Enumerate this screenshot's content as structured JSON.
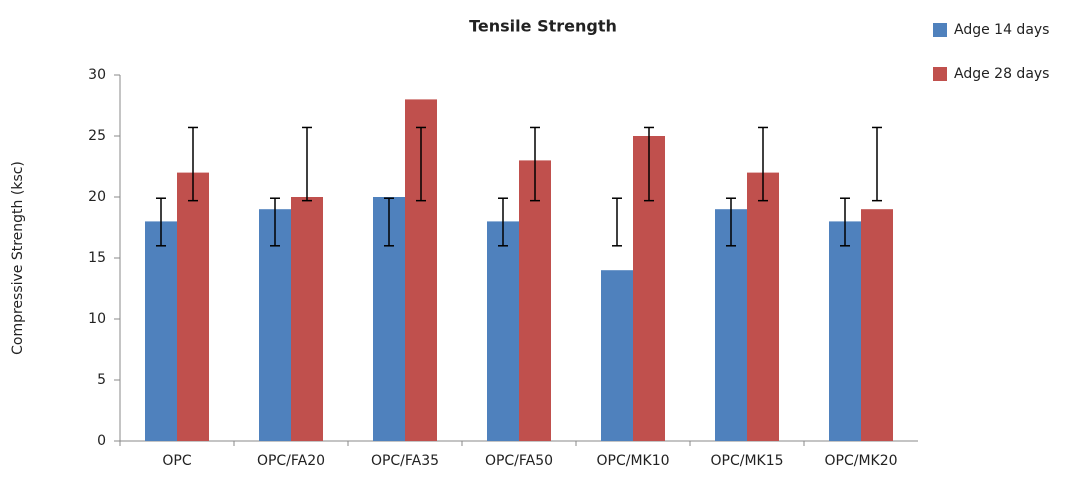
{
  "chart_data": {
    "type": "bar",
    "title": "Tensile Strength",
    "y_label": "Compressive Strength (ksc)",
    "categories": [
      "OPC",
      "OPC/FA20",
      "OPC/FA35",
      "OPC/FA50",
      "OPC/MK10",
      "OPC/MK15",
      "OPC/MK20"
    ],
    "series": [
      {
        "name": "Adge 14 days",
        "color": "#4f81bd",
        "values": [
          18,
          19,
          20,
          18,
          14,
          19,
          18
        ],
        "error_low": [
          16,
          16,
          16,
          16,
          16,
          16,
          16
        ],
        "error_high": [
          19.9,
          19.9,
          19.9,
          19.9,
          19.9,
          19.9,
          19.9
        ]
      },
      {
        "name": "Adge 28 days",
        "color": "#c0504d",
        "values": [
          22,
          20,
          28,
          23,
          25,
          22,
          19
        ],
        "error_low": [
          19.7,
          19.7,
          19.7,
          19.7,
          19.7,
          19.7,
          19.7
        ],
        "error_high": [
          25.7,
          25.7,
          25.7,
          25.7,
          25.7,
          25.7,
          25.7
        ]
      }
    ],
    "ylim": [
      0,
      30
    ],
    "yticks": [
      0,
      5,
      10,
      15,
      20,
      25,
      30
    ],
    "grid": false,
    "legend": "top-right"
  }
}
